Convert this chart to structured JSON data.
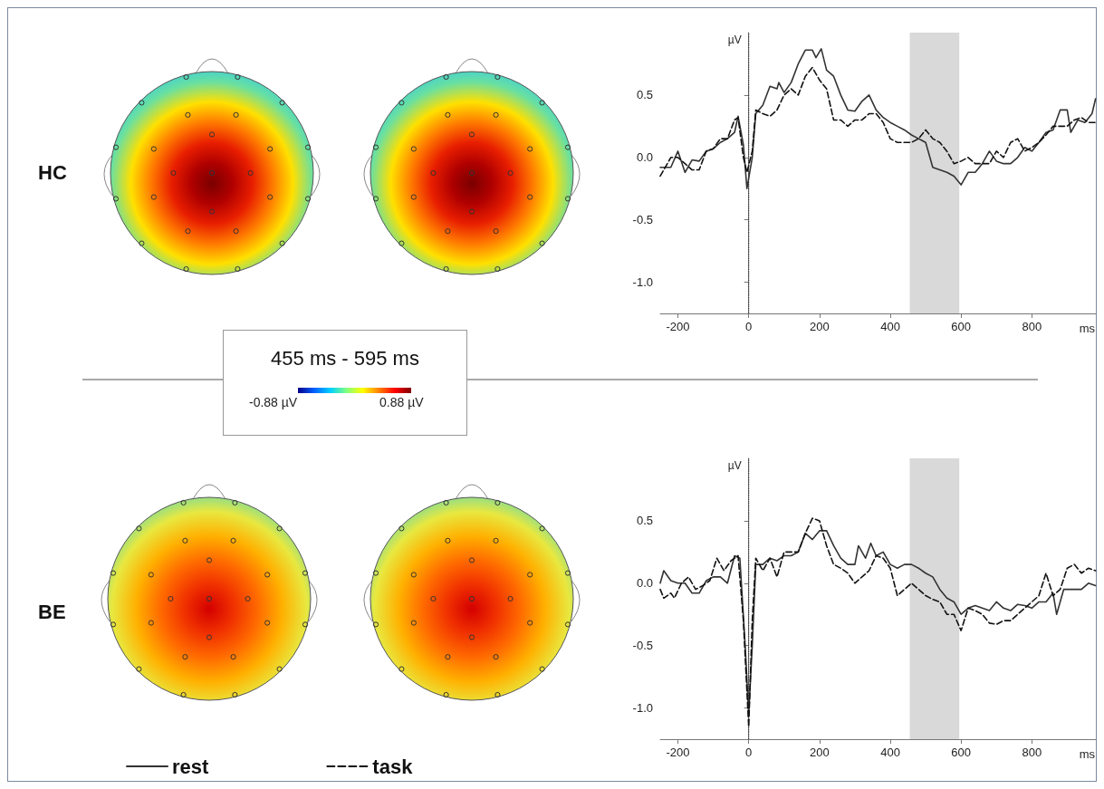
{
  "chart_data": [
    {
      "type": "other",
      "title": "HC"
    },
    {
      "type": "line",
      "xlabel": "ms",
      "ylabel": "µV",
      "xlim": [
        -250,
        980
      ],
      "ylim": [
        -1.25,
        1.0
      ],
      "xticks": [
        -200,
        0,
        200,
        400,
        600,
        800
      ],
      "yticks": [
        {
          "value": -1.0,
          "label": "-1.0"
        },
        {
          "value": -0.5,
          "label": "-0.5"
        },
        {
          "value": 0,
          "label": "0.0"
        },
        {
          "value": 0.5,
          "label": "0.5"
        }
      ],
      "grid": false,
      "marker": "none",
      "ref_lines": [
        {
          "axis": "x",
          "value": 0,
          "color": "#333333",
          "line_style": "dotted"
        }
      ],
      "bands": [
        {
          "axis": "x",
          "from": 455,
          "to": 595,
          "color": "#d9d9d9"
        }
      ],
      "series": [
        {
          "color": "#333333",
          "line_style": "solid",
          "x": [
            -250,
            -220,
            -200,
            -180,
            -160,
            -140,
            -120,
            -100,
            -80,
            -60,
            -40,
            -30,
            -15,
            -5,
            10,
            20,
            40,
            60,
            80,
            85,
            100,
            120,
            140,
            160,
            180,
            190,
            205,
            220,
            240,
            260,
            280,
            300,
            320,
            340,
            360,
            380,
            400,
            420,
            440,
            460,
            480,
            500,
            520,
            540,
            560,
            580,
            600,
            620,
            640,
            660,
            680,
            700,
            720,
            740,
            760,
            780,
            800,
            820,
            840,
            860,
            880,
            900,
            910,
            930,
            950,
            970,
            980
          ],
          "values": [
            -0.08,
            -0.08,
            0.05,
            -0.12,
            -0.02,
            -0.03,
            0.05,
            0.07,
            0.12,
            0.15,
            0.2,
            0.33,
            0.1,
            -0.25,
            0.0,
            0.35,
            0.42,
            0.57,
            0.55,
            0.6,
            0.52,
            0.6,
            0.75,
            0.86,
            0.86,
            0.8,
            0.87,
            0.7,
            0.65,
            0.5,
            0.38,
            0.37,
            0.45,
            0.5,
            0.38,
            0.32,
            0.28,
            0.25,
            0.22,
            0.18,
            0.15,
            0.12,
            -0.08,
            -0.1,
            -0.12,
            -0.15,
            -0.22,
            -0.12,
            -0.12,
            -0.05,
            0.05,
            -0.03,
            -0.05,
            -0.05,
            0.0,
            0.08,
            0.05,
            0.12,
            0.2,
            0.22,
            0.38,
            0.38,
            0.2,
            0.3,
            0.28,
            0.35,
            0.47
          ]
        },
        {
          "color": "#111111",
          "line_style": "dashed",
          "x": [
            -250,
            -220,
            -200,
            -180,
            -160,
            -140,
            -120,
            -100,
            -80,
            -60,
            -40,
            -30,
            -15,
            -5,
            10,
            20,
            40,
            60,
            80,
            100,
            120,
            140,
            160,
            180,
            200,
            220,
            240,
            260,
            280,
            300,
            320,
            340,
            360,
            380,
            400,
            420,
            440,
            460,
            480,
            500,
            520,
            540,
            560,
            580,
            600,
            620,
            640,
            660,
            680,
            700,
            720,
            740,
            760,
            780,
            800,
            820,
            840,
            860,
            880,
            900,
            920,
            940,
            960,
            980
          ],
          "values": [
            -0.15,
            0.0,
            0.0,
            -0.05,
            -0.1,
            -0.1,
            0.05,
            0.07,
            0.15,
            0.15,
            0.3,
            0.32,
            0.0,
            -0.12,
            0.05,
            0.38,
            0.35,
            0.33,
            0.38,
            0.5,
            0.55,
            0.5,
            0.65,
            0.72,
            0.62,
            0.55,
            0.3,
            0.3,
            0.25,
            0.3,
            0.3,
            0.35,
            0.35,
            0.28,
            0.15,
            0.12,
            0.12,
            0.12,
            0.15,
            0.22,
            0.15,
            0.12,
            0.05,
            -0.05,
            -0.03,
            0.0,
            -0.05,
            -0.05,
            -0.05,
            0.05,
            0.0,
            0.12,
            0.15,
            0.05,
            0.08,
            0.12,
            0.18,
            0.25,
            0.25,
            0.25,
            0.3,
            0.32,
            0.28,
            0.28
          ]
        }
      ]
    },
    {
      "type": "other",
      "title": "BE"
    },
    {
      "type": "line",
      "xlabel": "ms",
      "ylabel": "µV",
      "xlim": [
        -250,
        980
      ],
      "ylim": [
        -1.25,
        1.0
      ],
      "xticks": [
        -200,
        0,
        200,
        400,
        600,
        800
      ],
      "yticks": [
        {
          "value": -1.0,
          "label": "-1.0"
        },
        {
          "value": -0.5,
          "label": "-0.5"
        },
        {
          "value": 0,
          "label": "0.0"
        },
        {
          "value": 0.5,
          "label": "0.5"
        }
      ],
      "grid": false,
      "marker": "none",
      "legend": "bottom left",
      "ref_lines": [
        {
          "axis": "x",
          "value": 0,
          "color": "#333333",
          "line_style": "dotted"
        }
      ],
      "bands": [
        {
          "axis": "x",
          "from": 455,
          "to": 595,
          "color": "#d9d9d9"
        }
      ],
      "series": [
        {
          "name": "rest",
          "color": "#333333",
          "line_style": "solid",
          "x": [
            -250,
            -240,
            -220,
            -200,
            -180,
            -160,
            -140,
            -120,
            -100,
            -80,
            -60,
            -40,
            -25,
            -10,
            0,
            10,
            20,
            40,
            60,
            80,
            100,
            120,
            140,
            160,
            180,
            200,
            220,
            240,
            260,
            280,
            300,
            310,
            330,
            345,
            360,
            380,
            400,
            420,
            440,
            460,
            480,
            500,
            520,
            540,
            560,
            580,
            600,
            620,
            640,
            660,
            680,
            700,
            720,
            740,
            760,
            780,
            800,
            820,
            840,
            860,
            870,
            890,
            920,
            940,
            960,
            980
          ],
          "values": [
            0.0,
            0.1,
            0.02,
            0.0,
            0.0,
            -0.08,
            -0.08,
            0.02,
            0.05,
            0.05,
            0.0,
            0.22,
            0.2,
            -0.5,
            -1.05,
            -0.5,
            0.15,
            0.15,
            0.2,
            0.18,
            0.22,
            0.22,
            0.25,
            0.4,
            0.35,
            0.42,
            0.42,
            0.3,
            0.2,
            0.15,
            0.15,
            0.3,
            0.2,
            0.32,
            0.22,
            0.25,
            0.15,
            0.12,
            0.15,
            0.15,
            0.12,
            0.08,
            0.05,
            -0.05,
            -0.12,
            -0.15,
            -0.25,
            -0.2,
            -0.18,
            -0.2,
            -0.22,
            -0.15,
            -0.2,
            -0.22,
            -0.17,
            -0.18,
            -0.2,
            -0.15,
            -0.15,
            -0.08,
            -0.25,
            -0.05,
            -0.05,
            -0.05,
            0.0,
            -0.02
          ]
        },
        {
          "name": "task",
          "color": "#111111",
          "line_style": "dashed",
          "x": [
            -250,
            -240,
            -220,
            -210,
            -190,
            -170,
            -150,
            -130,
            -110,
            -90,
            -70,
            -50,
            -30,
            -15,
            0,
            10,
            20,
            40,
            60,
            80,
            100,
            120,
            140,
            160,
            180,
            200,
            220,
            240,
            260,
            280,
            300,
            320,
            340,
            360,
            380,
            400,
            420,
            440,
            460,
            480,
            500,
            520,
            540,
            560,
            580,
            600,
            620,
            640,
            660,
            680,
            700,
            720,
            740,
            760,
            780,
            800,
            820,
            840,
            860,
            880,
            900,
            920,
            940,
            960,
            980
          ],
          "values": [
            -0.05,
            -0.12,
            -0.08,
            -0.12,
            0.0,
            0.05,
            -0.05,
            -0.02,
            0.02,
            0.2,
            0.1,
            0.18,
            0.22,
            -0.3,
            -1.15,
            -0.3,
            0.2,
            0.1,
            0.2,
            0.05,
            0.25,
            0.25,
            0.25,
            0.4,
            0.52,
            0.5,
            0.3,
            0.15,
            0.12,
            0.08,
            0.0,
            0.05,
            0.1,
            0.22,
            0.2,
            0.12,
            -0.1,
            -0.05,
            0.0,
            -0.05,
            -0.1,
            -0.13,
            -0.15,
            -0.25,
            -0.25,
            -0.38,
            -0.2,
            -0.22,
            -0.25,
            -0.32,
            -0.33,
            -0.3,
            -0.3,
            -0.25,
            -0.2,
            -0.15,
            -0.1,
            0.08,
            -0.1,
            -0.05,
            0.12,
            0.15,
            0.08,
            0.12,
            0.1
          ]
        }
      ]
    },
    {
      "type": "other",
      "title": "455 ms - 595 ms",
      "annotations": [
        "-0.88 µV",
        "0.88 µV"
      ]
    }
  ]
}
